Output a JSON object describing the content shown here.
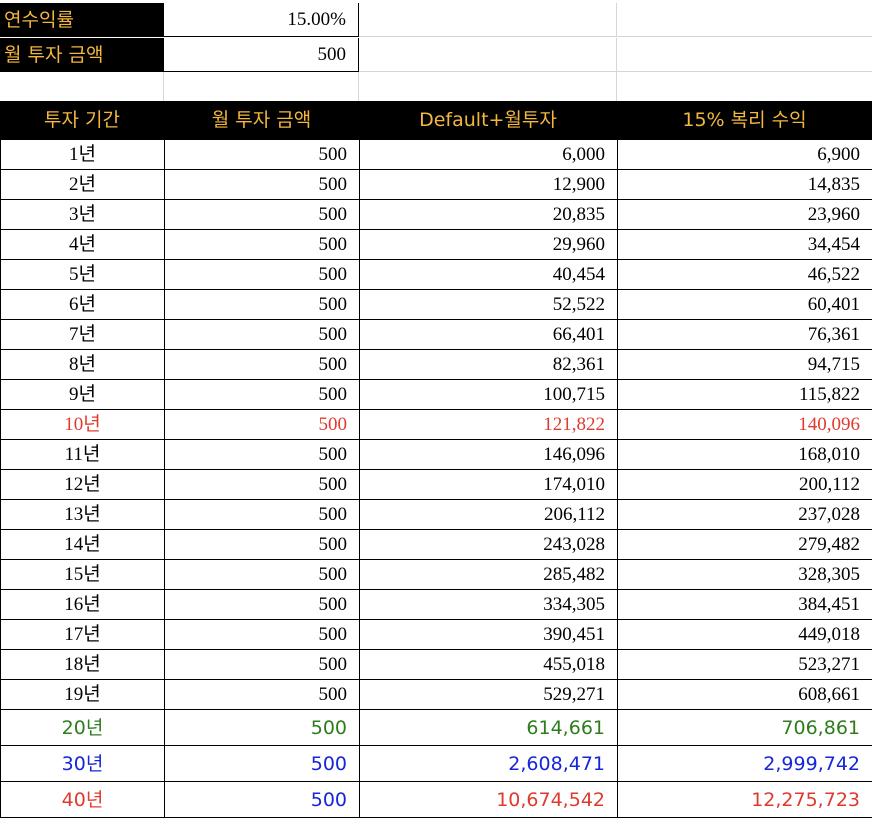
{
  "params": [
    {
      "label": "연수익률",
      "value": "15.00%"
    },
    {
      "label": "월 투자 금액",
      "value": "500"
    }
  ],
  "columns": [
    "투자 기간",
    "월 투자 금액",
    "Default+월투자",
    "15% 복리 수익"
  ],
  "colors": {
    "header_bg": "#000000",
    "header_text": "#f4b73e",
    "red": "#e03a2f",
    "green": "#2e7d1d",
    "blue": "#1526d8"
  },
  "rows": [
    {
      "period": "1년",
      "monthly": "500",
      "default_plus": "6,000",
      "compound": "6,900"
    },
    {
      "period": "2년",
      "monthly": "500",
      "default_plus": "12,900",
      "compound": "14,835"
    },
    {
      "period": "3년",
      "monthly": "500",
      "default_plus": "20,835",
      "compound": "23,960"
    },
    {
      "period": "4년",
      "monthly": "500",
      "default_plus": "29,960",
      "compound": "34,454"
    },
    {
      "period": "5년",
      "monthly": "500",
      "default_plus": "40,454",
      "compound": "46,522"
    },
    {
      "period": "6년",
      "monthly": "500",
      "default_plus": "52,522",
      "compound": "60,401"
    },
    {
      "period": "7년",
      "monthly": "500",
      "default_plus": "66,401",
      "compound": "76,361"
    },
    {
      "period": "8년",
      "monthly": "500",
      "default_plus": "82,361",
      "compound": "94,715"
    },
    {
      "period": "9년",
      "monthly": "500",
      "default_plus": "100,715",
      "compound": "115,822"
    },
    {
      "period": "10년",
      "monthly": "500",
      "default_plus": "121,822",
      "compound": "140,096",
      "color": "red"
    },
    {
      "period": "11년",
      "monthly": "500",
      "default_plus": "146,096",
      "compound": "168,010"
    },
    {
      "period": "12년",
      "monthly": "500",
      "default_plus": "174,010",
      "compound": "200,112"
    },
    {
      "period": "13년",
      "monthly": "500",
      "default_plus": "206,112",
      "compound": "237,028"
    },
    {
      "period": "14년",
      "monthly": "500",
      "default_plus": "243,028",
      "compound": "279,482"
    },
    {
      "period": "15년",
      "monthly": "500",
      "default_plus": "285,482",
      "compound": "328,305"
    },
    {
      "period": "16년",
      "monthly": "500",
      "default_plus": "334,305",
      "compound": "384,451"
    },
    {
      "period": "17년",
      "monthly": "500",
      "default_plus": "390,451",
      "compound": "449,018"
    },
    {
      "period": "18년",
      "monthly": "500",
      "default_plus": "455,018",
      "compound": "523,271"
    },
    {
      "period": "19년",
      "monthly": "500",
      "default_plus": "529,271",
      "compound": "608,661"
    },
    {
      "period": "20년",
      "monthly": "500",
      "default_plus": "614,661",
      "compound": "706,861",
      "color": "green",
      "sans": true
    },
    {
      "period": "30년",
      "monthly": "500",
      "default_plus": "2,608,471",
      "compound": "2,999,742",
      "color": "blue",
      "sans": true
    },
    {
      "period": "40년",
      "monthly": "500",
      "default_plus": "10,674,542",
      "compound": "12,275,723",
      "color": "red",
      "monthly_color": "blue",
      "sans": true
    }
  ]
}
